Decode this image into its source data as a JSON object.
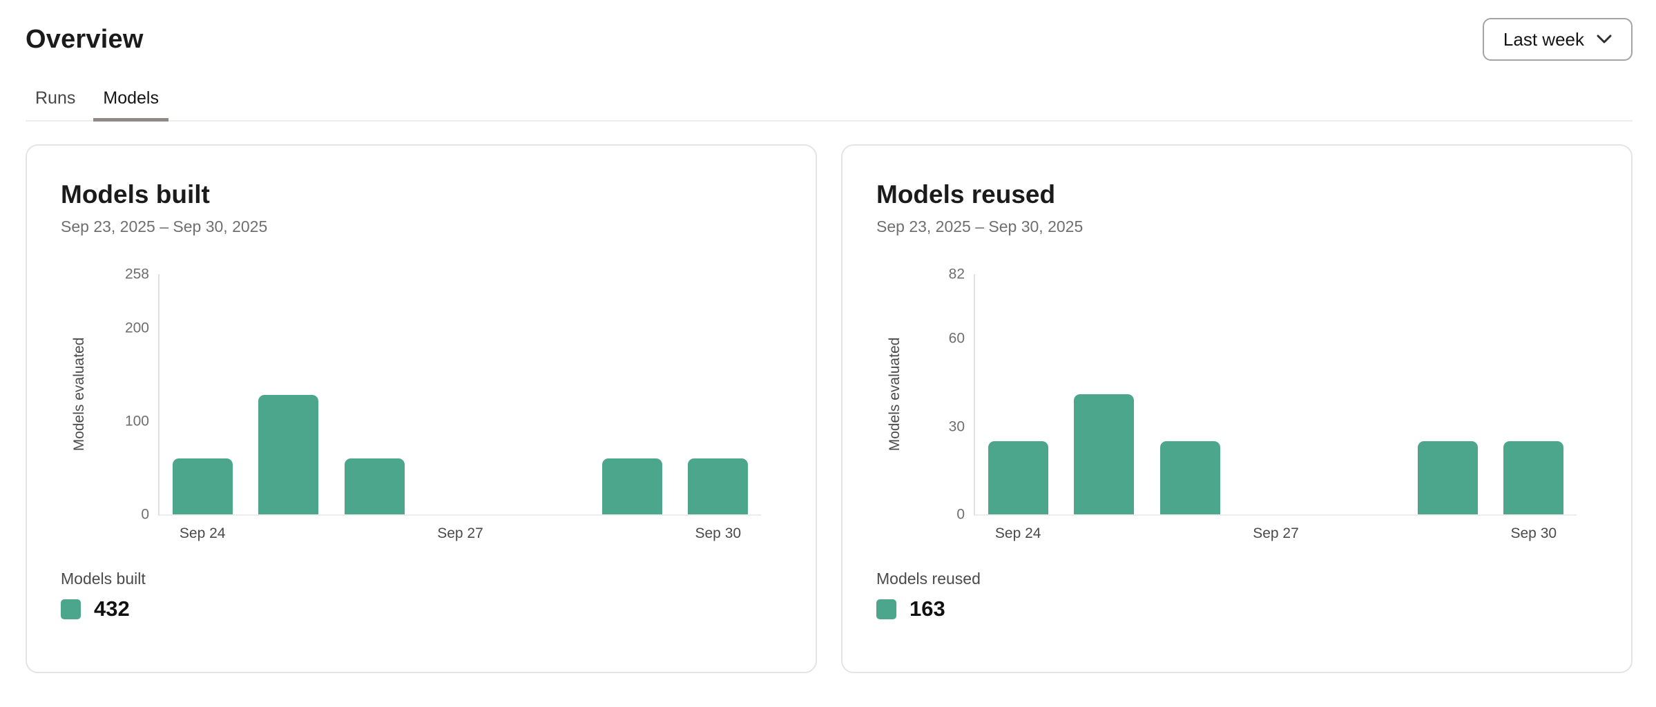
{
  "page": {
    "title": "Overview"
  },
  "time_range_button": {
    "label": "Last week",
    "icon": "chevron-down"
  },
  "tabs": [
    {
      "label": "Runs",
      "active": false
    },
    {
      "label": "Models",
      "active": true
    }
  ],
  "colors": {
    "accent_teal": "#4BA68B",
    "card_border": "#e4e4e4",
    "active_tab_underline": "#8f8a85",
    "subtitle_gray": "#6f6f6f"
  },
  "cards": [
    {
      "title": "Models built",
      "date_range": "Sep 23, 2025 – Sep 30, 2025",
      "legend": {
        "label": "Models built",
        "value": "432",
        "swatch_color": "#4BA68B"
      }
    },
    {
      "title": "Models reused",
      "date_range": "Sep 23, 2025 – Sep 30, 2025",
      "legend": {
        "label": "Models reused",
        "value": "163",
        "swatch_color": "#4BA68B"
      }
    }
  ],
  "chart_data": [
    {
      "type": "bar",
      "title": "Models built",
      "categories": [
        "Sep 24",
        "Sep 25",
        "Sep 26",
        "Sep 27",
        "Sep 28",
        "Sep 29",
        "Sep 30"
      ],
      "values": [
        60,
        128,
        60,
        0,
        0,
        60,
        60
      ],
      "xlabel": "",
      "ylabel": "Models evaluated",
      "ylim": [
        0,
        258
      ],
      "yticks": [
        0,
        100,
        200,
        258
      ],
      "xticks_shown": [
        "Sep 24",
        "Sep 27",
        "Sep 30"
      ],
      "bar_color": "#4BA68B",
      "grid": false,
      "legend_position": "bottom"
    },
    {
      "type": "bar",
      "title": "Models reused",
      "categories": [
        "Sep 24",
        "Sep 25",
        "Sep 26",
        "Sep 27",
        "Sep 28",
        "Sep 29",
        "Sep 30"
      ],
      "values": [
        25,
        41,
        25,
        0,
        0,
        25,
        25
      ],
      "xlabel": "",
      "ylabel": "Models evaluated",
      "ylim": [
        0,
        82
      ],
      "yticks": [
        0,
        30,
        60,
        82
      ],
      "xticks_shown": [
        "Sep 24",
        "Sep 27",
        "Sep 30"
      ],
      "bar_color": "#4BA68B",
      "grid": false,
      "legend_position": "bottom"
    }
  ]
}
